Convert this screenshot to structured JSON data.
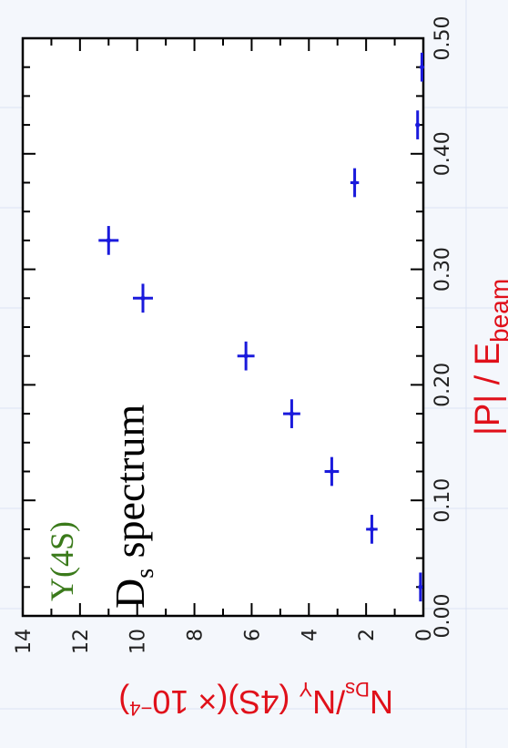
{
  "chart_data": {
    "type": "scatter",
    "title": "",
    "annotations": {
      "upsilon_label": "Υ(4S)",
      "upsilon_color": "#3a7a1a",
      "spectrum_main": "D",
      "spectrum_sub": "s",
      "spectrum_rest": " spectrum"
    },
    "xlabel": {
      "main": "|P| / E",
      "sub": "beam"
    },
    "ylabel": {
      "main": "N",
      "sub1": "Ds",
      "mid": "/N",
      "sub2": "Υ",
      "rest": " (4S)(× 10",
      "exp": "−4",
      "close": ")"
    },
    "xlim": [
      0.0,
      0.5
    ],
    "ylim": [
      0,
      14
    ],
    "x_ticks": [
      "0.00",
      "0.10",
      "0.20",
      "0.30",
      "0.40",
      "0.50"
    ],
    "y_ticks": [
      "0",
      "2",
      "4",
      "6",
      "8",
      "10",
      "12",
      "14"
    ],
    "series": [
      {
        "color": "#1a1adc",
        "points": [
          {
            "x": 0.025,
            "y": 0.1
          },
          {
            "x": 0.075,
            "y": 1.8
          },
          {
            "x": 0.125,
            "y": 3.2
          },
          {
            "x": 0.175,
            "y": 4.6
          },
          {
            "x": 0.225,
            "y": 6.2
          },
          {
            "x": 0.275,
            "y": 9.8
          },
          {
            "x": 0.325,
            "y": 11.0
          },
          {
            "x": 0.375,
            "y": 2.4
          },
          {
            "x": 0.425,
            "y": 0.2
          },
          {
            "x": 0.475,
            "y": 0.05
          }
        ],
        "y_err": [
          0.05,
          0.2,
          0.25,
          0.3,
          0.3,
          0.35,
          0.35,
          0.15,
          0.06,
          0.03
        ]
      }
    ],
    "colors": {
      "axis_title": "#e0101a",
      "tick_label": "#222222",
      "data": "#1a1adc"
    },
    "grid": false,
    "rotation": "chart rotated 90° counter-clockwise"
  }
}
